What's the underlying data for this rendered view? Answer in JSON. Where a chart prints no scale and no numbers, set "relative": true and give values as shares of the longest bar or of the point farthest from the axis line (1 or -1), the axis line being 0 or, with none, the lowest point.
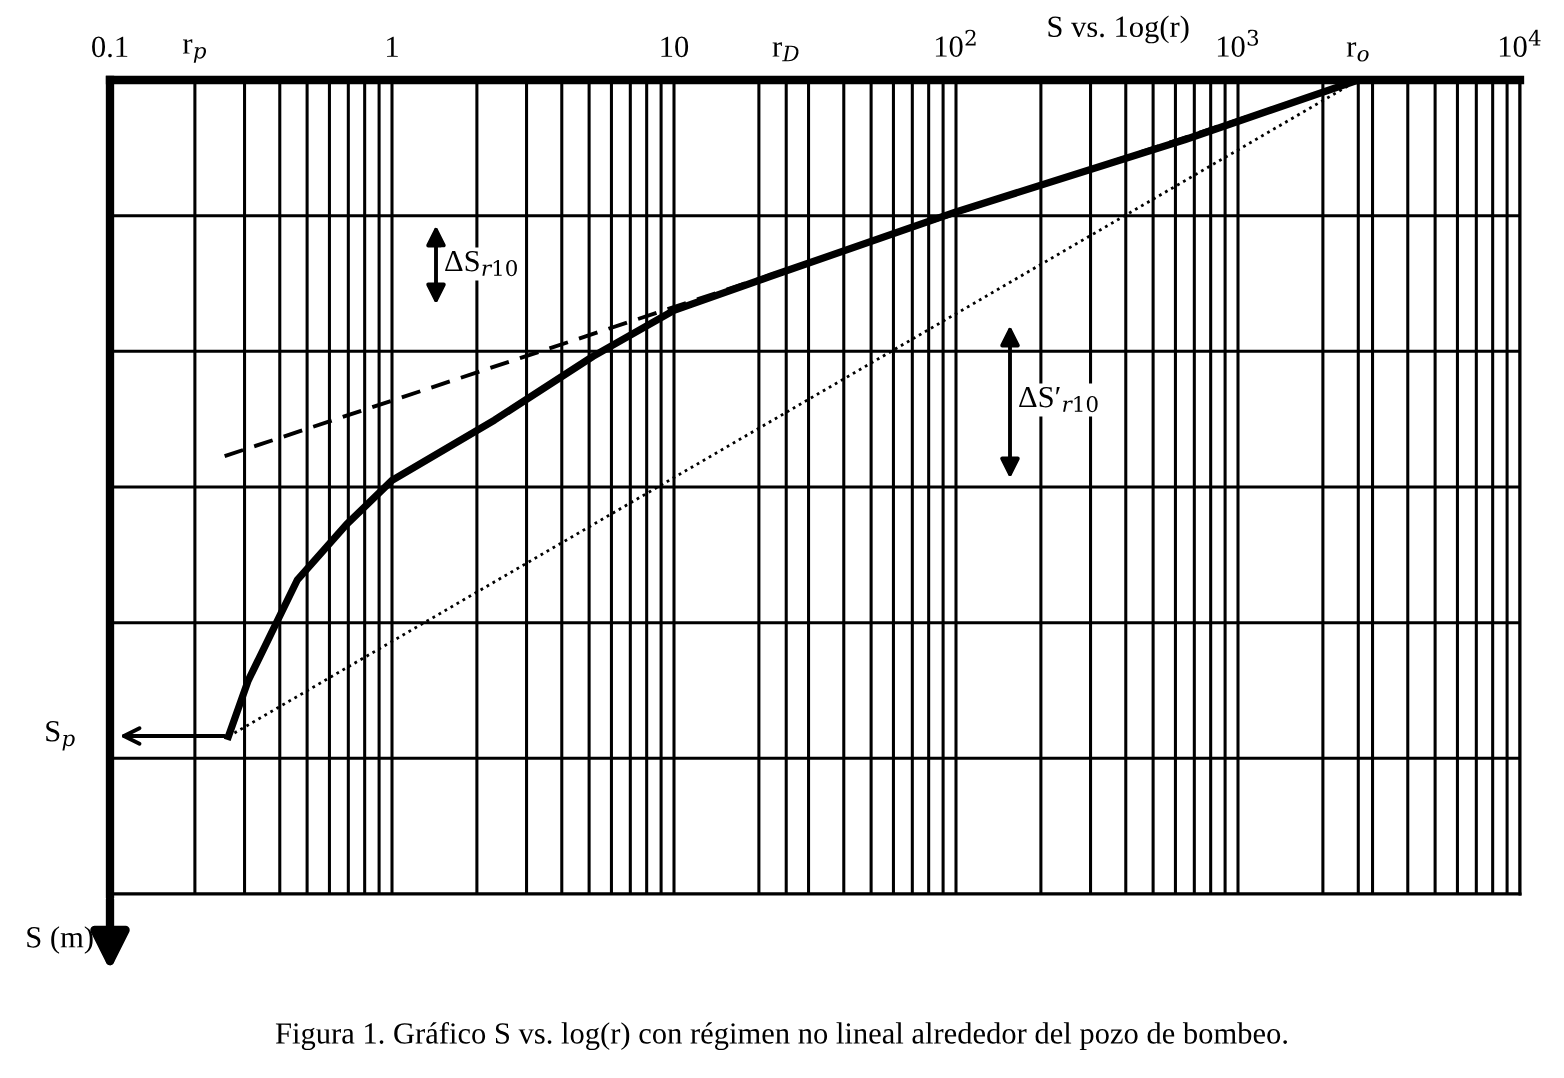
{
  "chart_data": {
    "type": "line",
    "relative": true,
    "xlabel": "S vs. 1og(r)",
    "log": "x",
    "xlim": [
      0.1,
      10000
    ],
    "xticks": [
      0.1,
      {
        "value": 0.2,
        "label": "r$_{p}$"
      },
      1,
      10,
      {
        "value": 25,
        "label": "r$_{D}$"
      },
      {
        "value": 100,
        "label": "10$^{2}$"
      },
      {
        "value": 1000,
        "label": "10$^{3}$"
      },
      {
        "value": 2670,
        "label": "r$_{o}$"
      },
      {
        "value": 10000,
        "label": "10$^{4}$"
      }
    ],
    "grid": true,
    "marker": "none",
    "series": [
      {
        "color": "#000000",
        "line_style": "solid",
        "x": [
          0.263,
          0.309,
          0.461,
          0.69,
          1.0,
          2.31,
          5.16,
          10,
          22.0,
          100,
          647,
          2670
        ],
        "values": [
          -1,
          -0.915,
          -0.762,
          -0.677,
          -0.61,
          -0.518,
          -0.421,
          -0.351,
          -0.299,
          -0.201,
          -0.091,
          0
        ]
      },
      {
        "color": "#000000",
        "line_style": "dashed",
        "x": [
          0.255,
          2670
        ],
        "values": [
          -0.573,
          0
        ]
      },
      {
        "color": "#000000",
        "line_style": "dotted",
        "x": [
          0.263,
          2670
        ],
        "values": [
          -1,
          0
        ]
      }
    ],
    "annotations": [
      "S$_{p}$",
      "ΔS$_{r10}$",
      "ΔS′$_{r10}$",
      "S (m)",
      "Figura 1. Gráfico S vs. log(r) con régimen no lineal alrededor del pozo de bombeo."
    ]
  }
}
